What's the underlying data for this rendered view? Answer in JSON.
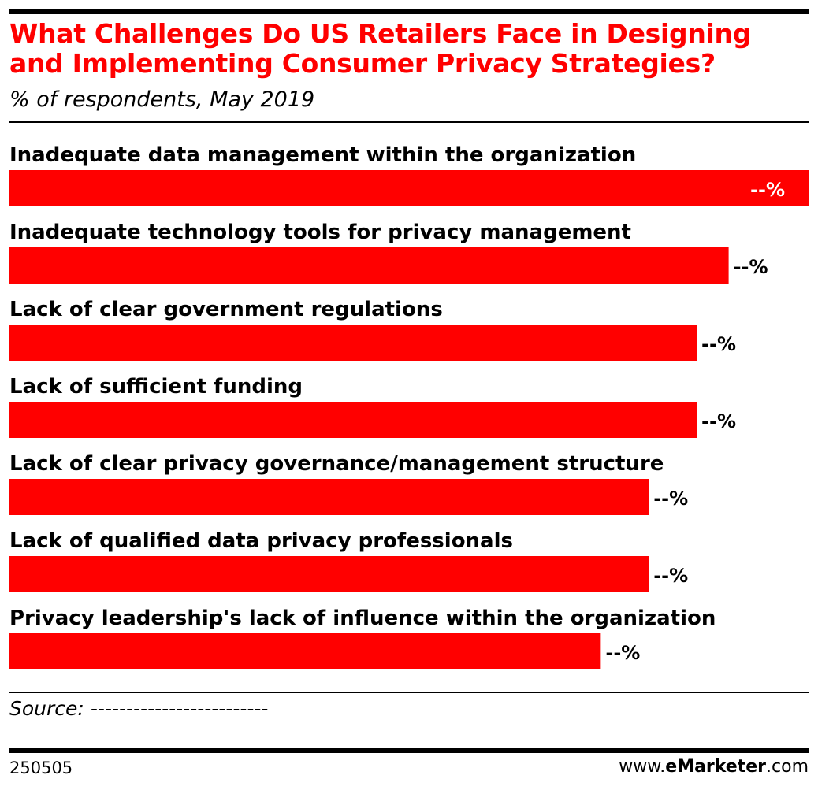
{
  "header": {
    "title": "What Challenges Do US Retailers Face in Designing and Implementing Consumer Privacy Strategies?",
    "subtitle": "% of respondents, May 2019"
  },
  "chart_data": {
    "type": "bar",
    "orientation": "horizontal",
    "title": "What Challenges Do US Retailers Face in Designing and Implementing Consumer Privacy Strategies?",
    "subtitle": "% of respondents, May 2019",
    "categories": [
      "Inadequate data management within the organization",
      "Inadequate technology tools for privacy management",
      "Lack of clear government regulations",
      "Lack of sufficient funding",
      "Lack of clear privacy governance/management structure",
      "Lack of qualified data privacy professionals",
      "Privacy leadership's lack of influence within the organization"
    ],
    "values": [
      100,
      90,
      86,
      86,
      80,
      80,
      74
    ],
    "value_labels": [
      "--%",
      "--%",
      "--%",
      "--%",
      "--%",
      "--%",
      "--%"
    ],
    "bar_color": "#ff0000",
    "xlim": [
      0,
      100
    ],
    "grid": false,
    "legend": "none"
  },
  "footer": {
    "source": "Source: -------------------------",
    "chart_id": "250505",
    "brand_prefix": "www.",
    "brand_name": "eMarketer",
    "brand_suffix": ".com"
  }
}
